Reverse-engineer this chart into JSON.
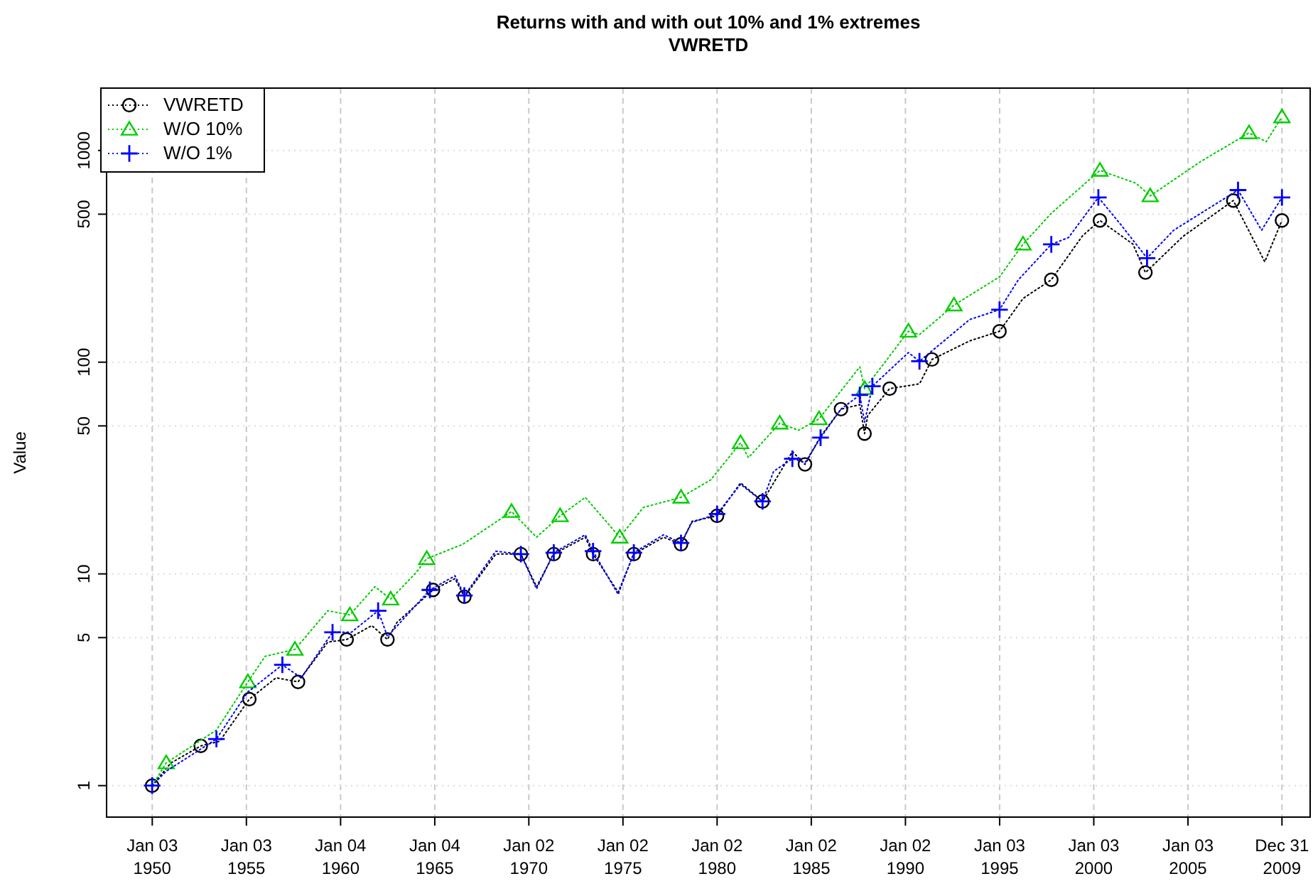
{
  "chart_data": {
    "type": "line",
    "title": "Returns with and with out 10% and 1% extremes",
    "subtitle": "VWRETD",
    "ylabel": "Value",
    "log": true,
    "grid": true,
    "legend": "top left",
    "line_style": "dotted",
    "xlim": [
      "1947-08-01",
      "2011-07-01"
    ],
    "xticks": [
      {
        "value": "1950-01-03",
        "label": "Jan 03\n1950"
      },
      {
        "value": "1955-01-03",
        "label": "Jan 03\n1955"
      },
      {
        "value": "1960-01-04",
        "label": "Jan 04\n1960"
      },
      {
        "value": "1965-01-04",
        "label": "Jan 04\n1965"
      },
      {
        "value": "1970-01-02",
        "label": "Jan 02\n1970"
      },
      {
        "value": "1975-01-02",
        "label": "Jan 02\n1975"
      },
      {
        "value": "1980-01-02",
        "label": "Jan 02\n1980"
      },
      {
        "value": "1985-01-02",
        "label": "Jan 02\n1985"
      },
      {
        "value": "1990-01-02",
        "label": "Jan 02\n1990"
      },
      {
        "value": "1995-01-03",
        "label": "Jan 03\n1995"
      },
      {
        "value": "2000-01-03",
        "label": "Jan 03\n2000"
      },
      {
        "value": "2005-01-03",
        "label": "Jan 03\n2005"
      },
      {
        "value": "2009-12-31",
        "label": "Dec 31\n2009"
      }
    ],
    "ylim": [
      0.71,
      1970
    ],
    "yticks": [
      1,
      5,
      10,
      50,
      100,
      500,
      1000
    ],
    "series": [
      {
        "name": "VWRETD",
        "color": "#000000",
        "marker": "circle",
        "x": [
          "1950-01",
          "1951-01",
          "1952-08",
          "1953-08",
          "1955-03",
          "1956-08",
          "1957-10",
          "1959-05",
          "1960-05",
          "1961-09",
          "1962-07",
          "1963-01",
          "1964-12",
          "1966-02",
          "1966-08",
          "1968-04",
          "1969-08",
          "1970-06",
          "1971-05",
          "1973-01",
          "1973-06",
          "1974-10",
          "1975-08",
          "1977-03",
          "1978-02",
          "1978-09",
          "1980-01",
          "1981-04",
          "1982-06",
          "1984-01",
          "1984-09",
          "1985-07",
          "1986-08",
          "1987-08",
          "1987-11",
          "1988-01",
          "1989-03",
          "1990-10",
          "1991-06",
          "1993-06",
          "1995-01",
          "1996-04",
          "1997-10",
          "1999-06",
          "2000-05",
          "2002-02",
          "2002-10",
          "2004-10",
          "2007-06",
          "2009-02",
          "2009-12-31"
        ],
        "values": [
          1.0,
          1.28,
          1.54,
          1.62,
          2.56,
          3.23,
          3.09,
          4.76,
          4.9,
          5.7,
          4.9,
          5.9,
          8.4,
          9.5,
          7.8,
          12.4,
          12.4,
          8.7,
          12.4,
          14.9,
          12.4,
          8.2,
          12.4,
          14.9,
          13.8,
          17.7,
          18.8,
          26.9,
          22,
          37.8,
          32.9,
          44.6,
          60,
          63,
          46,
          56,
          75,
          79,
          103,
          126,
          140,
          200,
          245,
          396,
          467,
          361,
          265,
          393,
          580,
          298,
          467
        ]
      },
      {
        "name": "W/O 10%",
        "color": "#00cd00",
        "marker": "triangle",
        "x": [
          "1950-01",
          "1950-10",
          "1953-06",
          "1955-02",
          "1956-01",
          "1957-08",
          "1959-05",
          "1960-07",
          "1961-11",
          "1962-09",
          "1964-01",
          "1964-08",
          "1966-07",
          "1969-02",
          "1970-06",
          "1971-09",
          "1973-01",
          "1974-11",
          "1976-02",
          "1978-02",
          "1979-09",
          "1981-04",
          "1981-09",
          "1983-05",
          "1984-05",
          "1985-06",
          "1987-08",
          "1987-11",
          "1988-12",
          "1990-03",
          "1990-10",
          "1992-08",
          "1995-01",
          "1996-04",
          "1997-10",
          "2000-05",
          "2002-04",
          "2003-01",
          "2005-09",
          "2008-04",
          "2009-03",
          "2009-12-31"
        ],
        "values": [
          1.0,
          1.28,
          1.83,
          3.09,
          4.08,
          4.4,
          6.7,
          6.4,
          8.7,
          7.6,
          10.1,
          11.8,
          13.8,
          19.7,
          14.9,
          18.8,
          23,
          14.9,
          20.6,
          23,
          27.8,
          41.6,
          35.4,
          51.5,
          47.7,
          54,
          95,
          75,
          100,
          140,
          135,
          186,
          253,
          361,
          505,
          805,
          700,
          610,
          885,
          1210,
          1100,
          1440
        ]
      },
      {
        "name": "W/O 1%",
        "color": "#0000ff",
        "marker": "cross",
        "x": [
          "1950-01",
          "1950-10",
          "1953-06",
          "1955-02",
          "1956-12",
          "1957-12",
          "1959-08",
          "1960-08",
          "1962-01",
          "1962-07",
          "1964-10",
          "1966-02",
          "1966-08",
          "1968-04",
          "1969-08",
          "1970-06",
          "1971-05",
          "1973-01",
          "1973-06",
          "1974-10",
          "1975-08",
          "1977-03",
          "1978-02",
          "1978-09",
          "1980-01",
          "1981-04",
          "1982-06",
          "1983-01",
          "1984-01",
          "1984-09",
          "1985-07",
          "1986-08",
          "1987-08",
          "1987-11",
          "1988-04",
          "1990-03",
          "1990-10",
          "1993-06",
          "1995-01",
          "1996-01",
          "1997-10",
          "1998-09",
          "2000-04",
          "2001-07",
          "2002-11",
          "2004-04",
          "2007-09",
          "2008-12",
          "2009-12-31"
        ],
        "values": [
          1.0,
          1.17,
          1.66,
          2.77,
          3.72,
          3.23,
          5.3,
          5.3,
          6.7,
          5.06,
          8.4,
          9.8,
          7.9,
          12.8,
          12.4,
          8.5,
          12.6,
          15.3,
          12.8,
          8.0,
          12.6,
          15.3,
          14.0,
          17.5,
          19.2,
          26.5,
          22,
          30.5,
          35,
          33.5,
          44,
          60,
          70,
          52,
          77,
          111,
          101,
          159,
          177,
          245,
          360,
          388,
          600,
          440,
          310,
          420,
          650,
          420,
          600
        ]
      }
    ]
  }
}
